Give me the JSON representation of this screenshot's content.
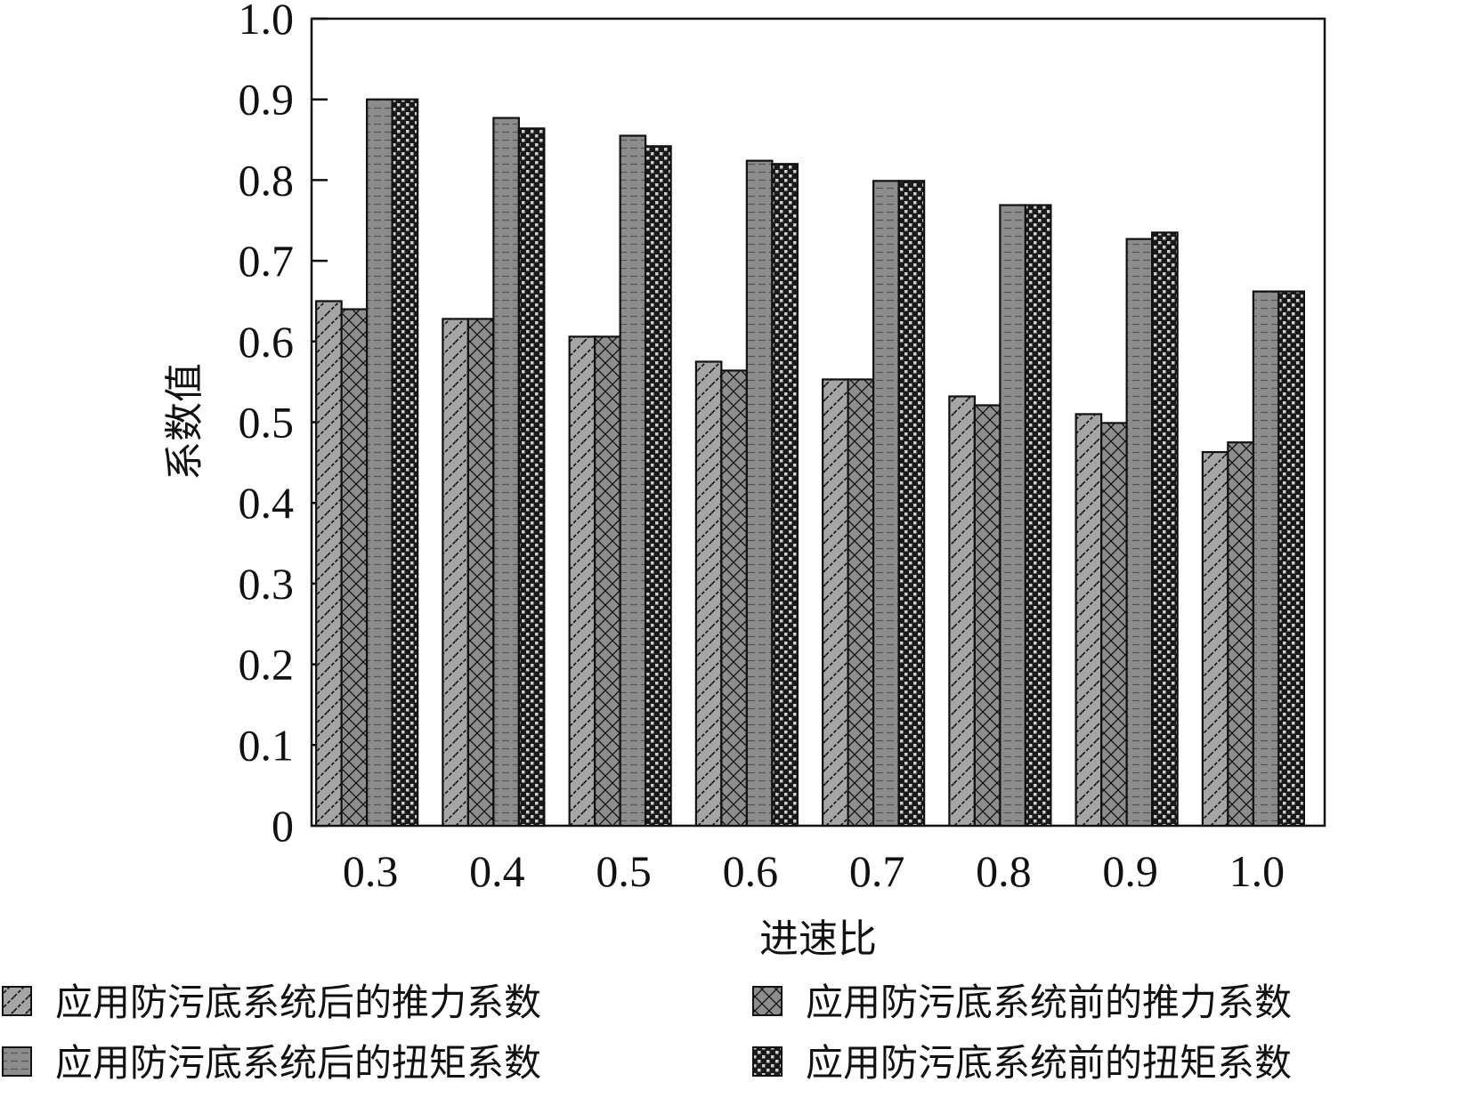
{
  "chart_data": {
    "type": "bar",
    "title": "",
    "xlabel": "进速比",
    "ylabel": "系数值",
    "categories": [
      "0.3",
      "0.4",
      "0.5",
      "0.6",
      "0.7",
      "0.8",
      "0.9",
      "1.0"
    ],
    "ylim": [
      0,
      1.0
    ],
    "yticks": [
      "0",
      "0.1",
      "0.2",
      "0.3",
      "0.4",
      "0.5",
      "0.6",
      "0.7",
      "0.8",
      "0.9",
      "1.0"
    ],
    "grid": false,
    "legend_position": "bottom",
    "series": [
      {
        "name": "应用防污底系统后的推力系数",
        "pattern": "diagonal",
        "color": "#a6a6a6",
        "values": [
          0.65,
          0.628,
          0.606,
          0.575,
          0.553,
          0.532,
          0.51,
          0.463
        ]
      },
      {
        "name": "应用防污底系统前的推力系数",
        "pattern": "crosshatch",
        "color": "#8e8e8e",
        "values": [
          0.64,
          0.628,
          0.606,
          0.564,
          0.553,
          0.521,
          0.499,
          0.475
        ]
      },
      {
        "name": "应用防污底系统后的扭矩系数",
        "pattern": "horizontal-dashed",
        "color": "#8c8c8c",
        "values": [
          0.9,
          0.877,
          0.855,
          0.824,
          0.799,
          0.769,
          0.727,
          0.662
        ]
      },
      {
        "name": "应用防污底系统前的扭矩系数",
        "pattern": "checker",
        "color": "#1a1a1a",
        "values": [
          0.9,
          0.864,
          0.842,
          0.82,
          0.799,
          0.769,
          0.735,
          0.662
        ]
      }
    ]
  }
}
